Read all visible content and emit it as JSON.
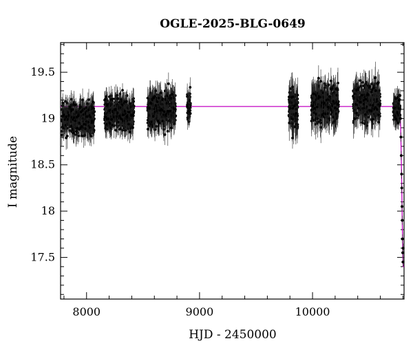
{
  "chart_data": {
    "type": "scatter",
    "title": "OGLE-2025-BLG-0649",
    "xlabel": "HJD - 2450000",
    "ylabel": "I magnitude",
    "xlim": [
      7770,
      10810
    ],
    "ylim": [
      19.82,
      17.05
    ],
    "y_inverted": true,
    "x_ticks": [
      8000,
      9000,
      10000
    ],
    "x_tick_labels": [
      "8000",
      "9000",
      "10000"
    ],
    "y_ticks": [
      17.5,
      18,
      18.5,
      19,
      19.5
    ],
    "y_tick_labels": [
      "17.5",
      "18",
      "18.5",
      "19",
      "19.5"
    ],
    "grid": false,
    "series": [
      {
        "kind": "points_with_errorbars",
        "color": "#000000",
        "seasons": [
          {
            "x_range": [
              7780,
              8070
            ],
            "mean_mag": 19.0,
            "scatter": 0.12,
            "err": 0.1
          },
          {
            "x_range": [
              8160,
              8420
            ],
            "mean_mag": 19.06,
            "scatter": 0.12,
            "err": 0.1
          },
          {
            "x_range": [
              8540,
              8790
            ],
            "mean_mag": 19.1,
            "scatter": 0.13,
            "err": 0.12
          },
          {
            "x_range": [
              8890,
              8920
            ],
            "mean_mag": 19.13,
            "scatter": 0.1,
            "err": 0.1
          },
          {
            "x_range": [
              9790,
              9870
            ],
            "mean_mag": 19.12,
            "scatter": 0.15,
            "err": 0.14
          },
          {
            "x_range": [
              9990,
              10230
            ],
            "mean_mag": 19.16,
            "scatter": 0.14,
            "err": 0.13
          },
          {
            "x_range": [
              10360,
              10600
            ],
            "mean_mag": 19.18,
            "scatter": 0.14,
            "err": 0.13
          },
          {
            "x_range": [
              10715,
              10775
            ],
            "mean_mag": 19.1,
            "scatter": 0.1,
            "err": 0.1
          }
        ],
        "event": [
          {
            "x": 10778,
            "y": 19.0
          },
          {
            "x": 10782,
            "y": 18.8
          },
          {
            "x": 10785,
            "y": 18.6
          },
          {
            "x": 10788,
            "y": 18.4
          },
          {
            "x": 10790,
            "y": 18.25
          },
          {
            "x": 10792,
            "y": 18.05
          },
          {
            "x": 10794,
            "y": 17.9
          },
          {
            "x": 10796,
            "y": 17.7
          },
          {
            "x": 10798,
            "y": 17.55
          },
          {
            "x": 10800,
            "y": 17.45
          },
          {
            "x": 10802,
            "y": 17.6
          }
        ]
      },
      {
        "kind": "model_curve",
        "color": "#c000c0",
        "baseline": 19.13,
        "points": [
          [
            7770,
            19.13
          ],
          [
            10760,
            19.13
          ],
          [
            10770,
            19.12
          ],
          [
            10775,
            19.08
          ],
          [
            10780,
            18.9
          ],
          [
            10785,
            18.6
          ],
          [
            10790,
            18.25
          ],
          [
            10795,
            17.85
          ],
          [
            10800,
            17.48
          ],
          [
            10802,
            17.4
          ],
          [
            10810,
            17.4
          ]
        ]
      }
    ]
  }
}
